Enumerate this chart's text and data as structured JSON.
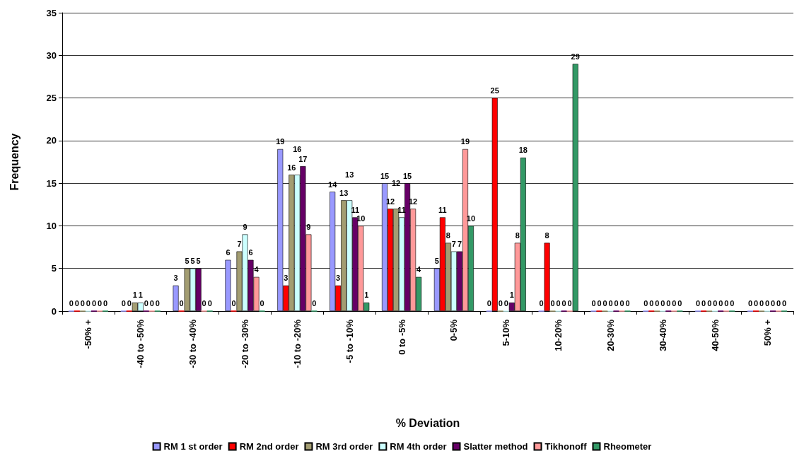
{
  "chart_data": {
    "type": "bar",
    "xlabel": "% Deviation",
    "ylabel": "Frequency",
    "categories": [
      "-50% +",
      "-40 to -50%",
      "-30 to -40%",
      "-20 to -30%",
      "-10 to -20%",
      "-5 to -10%",
      "0 to -5%",
      "0-5%",
      "5-10%",
      "10-20%",
      "20-30%",
      "30-40%",
      "40-50%",
      "50% +"
    ],
    "series": [
      {
        "name": "RM 1 st order",
        "color": "#9999ff",
        "values": [
          0,
          0,
          3,
          6,
          19,
          14,
          15,
          5,
          0,
          0,
          0,
          0,
          0,
          0
        ]
      },
      {
        "name": "RM 2nd order",
        "color": "#ff0000",
        "values": [
          0,
          0,
          0,
          0,
          3,
          3,
          12,
          11,
          25,
          8,
          0,
          0,
          0,
          0
        ]
      },
      {
        "name": "RM 3rd order",
        "color": "#a39d72",
        "values": [
          0,
          1,
          5,
          7,
          16,
          13,
          12,
          8,
          0,
          0,
          0,
          0,
          0,
          0
        ]
      },
      {
        "name": "RM 4th order",
        "color": "#ccffff",
        "values": [
          0,
          1,
          5,
          9,
          16,
          13,
          11,
          7,
          0,
          0,
          0,
          0,
          0,
          0
        ]
      },
      {
        "name": "Slatter method",
        "color": "#660066",
        "values": [
          0,
          0,
          5,
          6,
          17,
          11,
          15,
          7,
          1,
          0,
          0,
          0,
          0,
          0
        ]
      },
      {
        "name": "Tikhonoff",
        "color": "#ff9999",
        "values": [
          0,
          0,
          0,
          4,
          9,
          10,
          12,
          19,
          8,
          0,
          0,
          0,
          0,
          0
        ]
      },
      {
        "name": "Rheometer",
        "color": "#339966",
        "values": [
          0,
          0,
          0,
          0,
          0,
          1,
          4,
          10,
          18,
          29,
          0,
          0,
          0,
          0
        ]
      }
    ],
    "ylim": [
      0,
      35
    ],
    "yticks": [
      0,
      5,
      10,
      15,
      20,
      25,
      30,
      35
    ],
    "grid": "y",
    "legend": "bottom",
    "data_labels": true
  }
}
